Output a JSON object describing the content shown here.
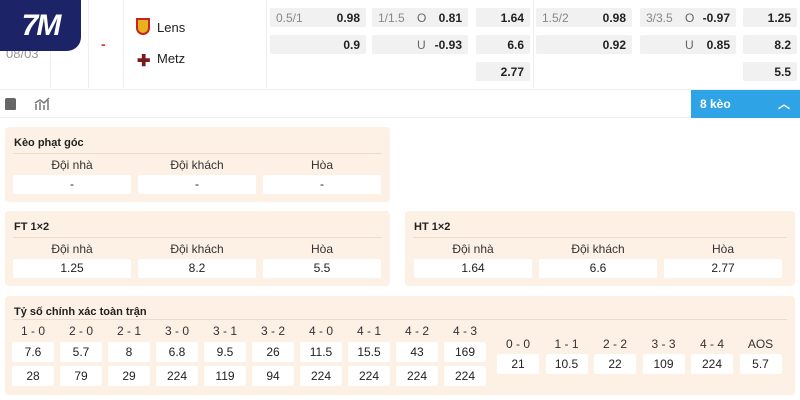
{
  "logo": {
    "text": "7M",
    "bg": "#1c2366"
  },
  "match": {
    "date": "08/03",
    "score": "-",
    "home": "Lens",
    "away": "Metz"
  },
  "odds": {
    "left": {
      "hdp_line": "0.5/1",
      "hdp_home": "0.98",
      "hdp_away": "0.9",
      "ou_line": "1/1.5",
      "over_label": "O",
      "over": "0.81",
      "under_label": "U",
      "under": "-0.93",
      "x12": [
        "1.64",
        "6.6",
        "2.77"
      ]
    },
    "right": {
      "hdp_line": "1.5/2",
      "hdp_home": "0.98",
      "hdp_away": "0.92",
      "ou_line": "3/3.5",
      "over_label": "O",
      "over": "-0.97",
      "under_label": "U",
      "under": "0.85",
      "x12": [
        "1.25",
        "8.2",
        "5.5"
      ]
    }
  },
  "toolbar": {
    "more_label": "8 kèo",
    "accent": "#2ea3e6"
  },
  "corner": {
    "title": "Kèo phạt góc",
    "labels": [
      "Đội nhà",
      "Đội khách",
      "Hòa"
    ],
    "values": [
      "-",
      "-",
      "-"
    ]
  },
  "ft": {
    "title": "FT 1×2",
    "labels": [
      "Đội nhà",
      "Đội khách",
      "Hòa"
    ],
    "values": [
      "1.25",
      "8.2",
      "5.5"
    ]
  },
  "ht": {
    "title": "HT 1×2",
    "labels": [
      "Đội nhà",
      "Đội khách",
      "Hòa"
    ],
    "values": [
      "1.64",
      "6.6",
      "2.77"
    ]
  },
  "exact": {
    "title": "Tỷ số chính xác toàn trận",
    "scores": [
      "1 - 0",
      "2 - 0",
      "2 - 1",
      "3 - 0",
      "3 - 1",
      "3 - 2",
      "4 - 0",
      "4 - 1",
      "4 - 2",
      "4 - 3"
    ],
    "home": [
      "7.6",
      "5.7",
      "8",
      "6.8",
      "9.5",
      "26",
      "11.5",
      "15.5",
      "43",
      "169"
    ],
    "away": [
      "28",
      "79",
      "29",
      "224",
      "119",
      "94",
      "224",
      "224",
      "224",
      "224"
    ],
    "draws": [
      "0 - 0",
      "1 - 1",
      "2 - 2",
      "3 - 3",
      "4 - 4",
      "AOS"
    ],
    "draw_values": [
      "21",
      "10.5",
      "22",
      "109",
      "224",
      "5.7"
    ]
  }
}
